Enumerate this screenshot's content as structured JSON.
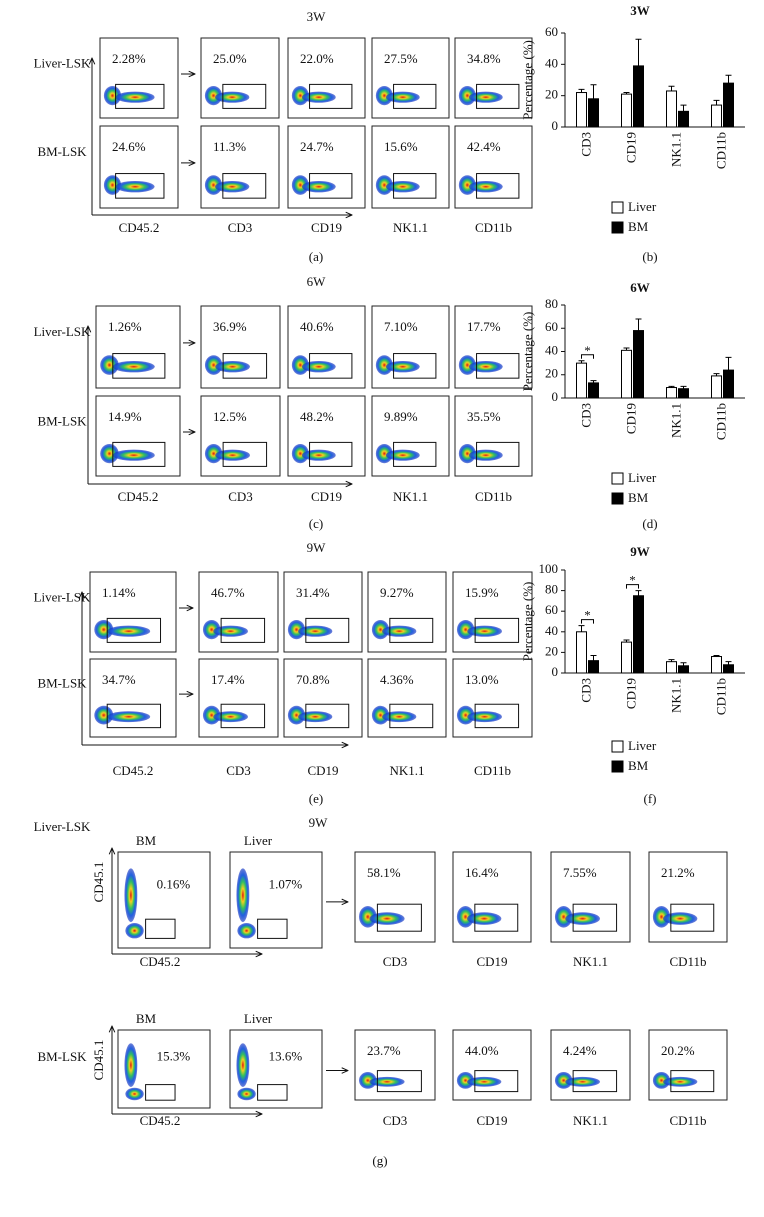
{
  "flow_panels": [
    {
      "title": "3W",
      "row_labels": [
        "Liver-LSK",
        "BM-LSK"
      ],
      "columns": [
        "CD45.2",
        "CD3",
        "CD19",
        "NK1.1",
        "CD11b"
      ],
      "percentages": [
        [
          "2.28%",
          "25.0%",
          "22.0%",
          "27.5%",
          "34.8%"
        ],
        [
          "24.6%",
          "11.3%",
          "24.7%",
          "15.6%",
          "42.4%"
        ]
      ],
      "caption": "(a)"
    },
    {
      "title": "6W",
      "row_labels": [
        "Liver-LSK",
        "BM-LSK"
      ],
      "columns": [
        "CD45.2",
        "CD3",
        "CD19",
        "NK1.1",
        "CD11b"
      ],
      "percentages": [
        [
          "1.26%",
          "36.9%",
          "40.6%",
          "7.10%",
          "17.7%"
        ],
        [
          "14.9%",
          "12.5%",
          "48.2%",
          "9.89%",
          "35.5%"
        ]
      ],
      "caption": "(c)"
    },
    {
      "title": "9W",
      "row_labels": [
        "Liver-LSK",
        "BM-LSK"
      ],
      "columns": [
        "CD45.2",
        "CD3",
        "CD19",
        "NK1.1",
        "CD11b"
      ],
      "percentages": [
        [
          "1.14%",
          "46.7%",
          "31.4%",
          "9.27%",
          "15.9%"
        ],
        [
          "34.7%",
          "17.4%",
          "70.8%",
          "4.36%",
          "13.0%"
        ]
      ],
      "caption": "(e)"
    }
  ],
  "chart_data": [
    {
      "type": "bar",
      "title": "3W",
      "ylabel": "Percentage (%)",
      "categories": [
        "CD3",
        "CD19",
        "NK1.1",
        "CD11b"
      ],
      "ylim": [
        0,
        60
      ],
      "yticks": [
        0,
        20,
        40,
        60
      ],
      "series": [
        {
          "name": "Liver",
          "color": "#ffffff",
          "values": [
            22,
            21,
            23,
            14
          ],
          "errors": [
            2,
            1,
            3,
            3
          ]
        },
        {
          "name": "BM",
          "color": "#000000",
          "values": [
            18,
            39,
            10,
            28
          ],
          "errors": [
            9,
            17,
            4,
            5
          ]
        }
      ],
      "significance_labels": [
        null,
        null,
        null,
        null
      ],
      "caption": "(b)"
    },
    {
      "type": "bar",
      "title": "6W",
      "ylabel": "Percentage (%)",
      "categories": [
        "CD3",
        "CD19",
        "NK1.1",
        "CD11b"
      ],
      "ylim": [
        0,
        80
      ],
      "yticks": [
        0,
        20,
        40,
        60,
        80
      ],
      "series": [
        {
          "name": "Liver",
          "color": "#ffffff",
          "values": [
            30,
            41,
            9,
            19
          ],
          "errors": [
            2,
            2,
            1,
            2
          ]
        },
        {
          "name": "BM",
          "color": "#000000",
          "values": [
            13,
            58,
            8,
            24
          ],
          "errors": [
            2,
            10,
            2,
            11
          ]
        }
      ],
      "significance_labels": [
        "*",
        null,
        null,
        null
      ],
      "caption": "(d)"
    },
    {
      "type": "bar",
      "title": "9W",
      "ylabel": "Percentage (%)",
      "categories": [
        "CD3",
        "CD19",
        "NK1.1",
        "CD11b"
      ],
      "ylim": [
        0,
        100
      ],
      "yticks": [
        0,
        20,
        40,
        60,
        80,
        100
      ],
      "series": [
        {
          "name": "Liver",
          "color": "#ffffff",
          "values": [
            40,
            30,
            11,
            16
          ],
          "errors": [
            6,
            2,
            2,
            1
          ]
        },
        {
          "name": "BM",
          "color": "#000000",
          "values": [
            12,
            75,
            7,
            8
          ],
          "errors": [
            5,
            5,
            3,
            3
          ]
        }
      ],
      "significance_labels": [
        "*",
        "*",
        null,
        null
      ],
      "caption": "(f)"
    }
  ],
  "panel_g": {
    "title": "9W",
    "caption": "(g)",
    "rows": [
      {
        "row_label": "Liver-LSK",
        "y_axis": "CD45.1",
        "x_axis": "CD45.2",
        "gate_titles": [
          "BM",
          "Liver"
        ],
        "gate_percentages": [
          "0.16%",
          "1.07%"
        ],
        "subset_percentages": [
          "58.1%",
          "16.4%",
          "7.55%",
          "21.2%"
        ],
        "subset_labels": [
          "CD3",
          "CD19",
          "NK1.1",
          "CD11b"
        ]
      },
      {
        "row_label": "BM-LSK",
        "y_axis": "CD45.1",
        "x_axis": "CD45.2",
        "gate_titles": [
          "BM",
          "Liver"
        ],
        "gate_percentages": [
          "15.3%",
          "13.6%"
        ],
        "subset_percentages": [
          "23.7%",
          "44.0%",
          "4.24%",
          "20.2%"
        ],
        "subset_labels": [
          "CD3",
          "CD19",
          "NK1.1",
          "CD11b"
        ]
      }
    ]
  }
}
